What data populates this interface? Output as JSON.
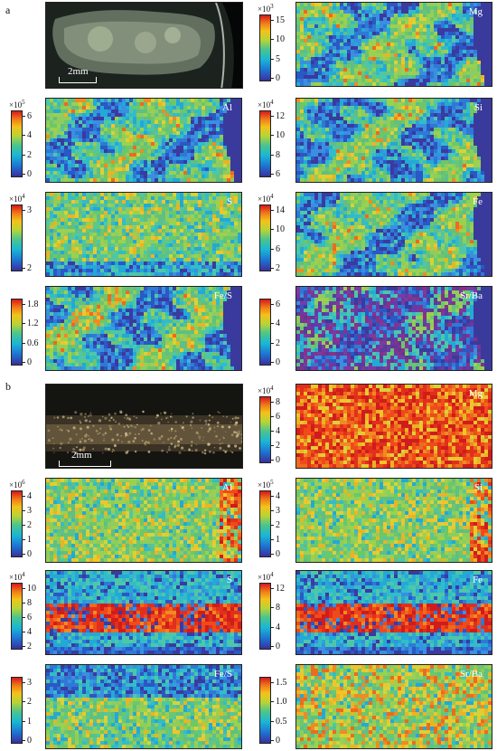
{
  "panel_a": {
    "letter": "a",
    "scale_label": "2mm",
    "maps": [
      {
        "element": "Mg",
        "multiplier": "×10",
        "exp": "3",
        "ticks": [
          "15",
          "10",
          "5",
          "0"
        ],
        "style": "patchy"
      },
      {
        "element": "Al",
        "multiplier": "×10",
        "exp": "5",
        "ticks": [
          "6",
          "4",
          "2",
          "0"
        ],
        "style": "patchy"
      },
      {
        "element": "Si",
        "multiplier": "×10",
        "exp": "4",
        "ticks": [
          "12",
          "10",
          "8",
          "6"
        ],
        "style": "patchy"
      },
      {
        "element": "S",
        "multiplier": "×10",
        "exp": "4",
        "ticks": [
          "3",
          "2"
        ],
        "style": "uniform"
      },
      {
        "element": "Fe",
        "multiplier": "×10",
        "exp": "4",
        "ticks": [
          "14",
          "10",
          "6",
          "2"
        ],
        "style": "patchy"
      },
      {
        "element": "Fe/S",
        "multiplier": "",
        "exp": "",
        "ticks": [
          "1.8",
          "1.2",
          "0.6",
          "0"
        ],
        "style": "patchy"
      },
      {
        "element": "Sr/Ba",
        "multiplier": "",
        "exp": "",
        "ticks": [
          "6",
          "4",
          "2",
          "0"
        ],
        "style": "patchy-purple"
      }
    ]
  },
  "panel_b": {
    "letter": "b",
    "scale_label": "2mm",
    "maps": [
      {
        "element": "Mg",
        "multiplier": "×10",
        "exp": "4",
        "ticks": [
          "8",
          "6",
          "4",
          "2",
          "0"
        ],
        "style": "hot"
      },
      {
        "element": "Al",
        "multiplier": "×10",
        "exp": "6",
        "ticks": [
          "4",
          "3",
          "2",
          "1",
          "0"
        ],
        "style": "green"
      },
      {
        "element": "Si",
        "multiplier": "×10",
        "exp": "5",
        "ticks": [
          "4",
          "3",
          "2",
          "1",
          "0"
        ],
        "style": "green"
      },
      {
        "element": "S",
        "multiplier": "×10",
        "exp": "4",
        "ticks": [
          "10",
          "8",
          "6",
          "4",
          "2"
        ],
        "style": "band"
      },
      {
        "element": "Fe",
        "multiplier": "×10",
        "exp": "4",
        "ticks": [
          "12",
          "8",
          "4",
          "0"
        ],
        "style": "band"
      },
      {
        "element": "Fe/S",
        "multiplier": "",
        "exp": "",
        "ticks": [
          "3",
          "2",
          "1",
          "0"
        ],
        "style": "greenblue"
      },
      {
        "element": "Sr/Ba",
        "multiplier": "",
        "exp": "",
        "ticks": [
          "1.5",
          "1.0",
          "0.5",
          "0"
        ],
        "style": "yellowgreen"
      }
    ]
  }
}
